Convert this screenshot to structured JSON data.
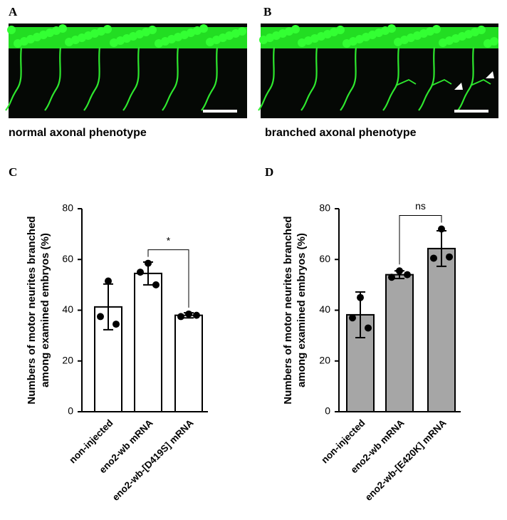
{
  "panels": {
    "a": "A",
    "b": "B",
    "c": "C",
    "d": "D"
  },
  "captions": {
    "a": "normal axonal phenotype",
    "b": "branched axonal phenotype"
  },
  "chart_data": [
    {
      "type": "bar",
      "ylabel": [
        "Numbers of motor neurites branched",
        "among examined embryos (%)"
      ],
      "categories": [
        "non-injected",
        "eno2-wb mRNA",
        "eno2-wb-[D419S] mRNA"
      ],
      "values": [
        41.3,
        54.5,
        38.0
      ],
      "errors": [
        9,
        4.5,
        1
      ],
      "points": [
        [
          51.5,
          37.5,
          34.5
        ],
        [
          58.5,
          55,
          50
        ],
        [
          38.5,
          37.5,
          38
        ]
      ],
      "color": "#ffffff",
      "ylim": [
        0,
        80
      ],
      "yticks": [
        0,
        20,
        40,
        60,
        80
      ],
      "annotation": "*"
    },
    {
      "type": "bar",
      "ylabel": [
        "Numbers of motor neurites branched",
        "among examined embryos (%)"
      ],
      "categories": [
        "non-injected",
        "eno2-wb mRNA",
        "eno2-wb-[E420K] mRNA"
      ],
      "values": [
        38.2,
        54.0,
        64.3
      ],
      "errors": [
        9,
        1.5,
        7
      ],
      "points": [
        [
          45,
          37,
          33
        ],
        [
          55.5,
          53,
          54
        ],
        [
          72,
          60.5,
          61
        ]
      ],
      "color": "#a6a6a6",
      "ylim": [
        0,
        80
      ],
      "yticks": [
        0,
        20,
        40,
        60,
        80
      ],
      "annotation": "ns"
    }
  ]
}
